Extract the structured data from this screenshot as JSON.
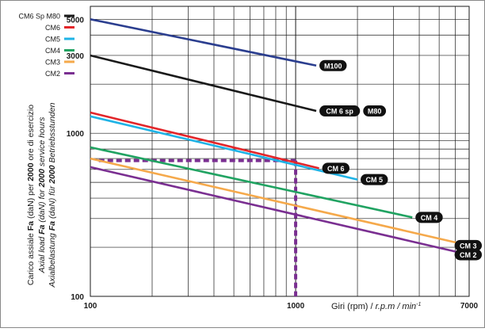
{
  "chart_data": {
    "type": "line",
    "x_scale": "log",
    "y_scale": "log",
    "xlim": [
      100,
      7000
    ],
    "ylim": [
      100,
      6000
    ],
    "grid": true,
    "legend_position": "top-left",
    "xlabel": {
      "prefix": "Giri (rpm) / ",
      "italic": "r.p.m / min",
      "sup": "-1"
    },
    "ylabel_lines": [
      [
        {
          "text": "Carico assiale ",
          "style": "normal"
        },
        {
          "text": "Fa",
          "style": "bold"
        },
        {
          "text": " (daN) per ",
          "style": "normal"
        },
        {
          "text": "2000",
          "style": "bold"
        },
        {
          "text": " ore di esercizio",
          "style": "normal"
        }
      ],
      [
        {
          "text": "Axial load ",
          "style": "italic"
        },
        {
          "text": "Fa",
          "style": "bold-italic"
        },
        {
          "text": " (daN) for ",
          "style": "italic"
        },
        {
          "text": "2000",
          "style": "bold-italic"
        },
        {
          "text": " service hours",
          "style": "italic"
        }
      ],
      [
        {
          "text": "Axialbelastung ",
          "style": "italic"
        },
        {
          "text": "Fa",
          "style": "bold-italic"
        },
        {
          "text": " (daN) für ",
          "style": "italic"
        },
        {
          "text": "2000",
          "style": "bold-italic"
        },
        {
          "text": " Betriebsstunden",
          "style": "italic"
        }
      ]
    ],
    "x_tick_labels": [
      {
        "value": 100,
        "label": "100"
      },
      {
        "value": 1000,
        "label": "1000"
      },
      {
        "value": 7000,
        "label": "7000"
      }
    ],
    "y_tick_labels": [
      {
        "value": 100,
        "label": "100"
      },
      {
        "value": 1000,
        "label": "1000"
      },
      {
        "value": 3000,
        "label": "3000"
      },
      {
        "value": 5000,
        "label": "5000"
      }
    ],
    "legend": [
      {
        "label": "CM6 Sp  M80",
        "color": "#1a1a1a"
      },
      {
        "label": "CM6",
        "color": "#e3262a"
      },
      {
        "label": "CM5",
        "color": "#1fb3e6"
      },
      {
        "label": "CM4",
        "color": "#21a362"
      },
      {
        "label": "CM3",
        "color": "#f5a94b"
      },
      {
        "label": "CM2",
        "color": "#7a2f91"
      }
    ],
    "series": [
      {
        "name": "M100",
        "color": "#2b3e8f",
        "x": [
          100,
          1260
        ],
        "y": [
          5000,
          2600
        ],
        "tags": [
          "M100"
        ]
      },
      {
        "name": "CM 6 sp / M80",
        "color": "#1a1a1a",
        "x": [
          100,
          1260
        ],
        "y": [
          3000,
          1370
        ],
        "tags": [
          "CM 6 sp",
          "M80"
        ]
      },
      {
        "name": "CM 6",
        "color": "#e3262a",
        "x": [
          100,
          1300
        ],
        "y": [
          1340,
          610
        ],
        "tags": [
          "CM 6"
        ]
      },
      {
        "name": "CM 5",
        "color": "#1fb3e6",
        "x": [
          100,
          2000
        ],
        "y": [
          1270,
          520
        ],
        "tags": [
          "CM 5"
        ]
      },
      {
        "name": "CM 4",
        "color": "#21a362",
        "x": [
          100,
          3700
        ],
        "y": [
          820,
          305
        ],
        "tags": [
          "CM 4"
        ]
      },
      {
        "name": "CM 3",
        "color": "#f5a94b",
        "x": [
          100,
          7000
        ],
        "y": [
          700,
          205
        ],
        "tags": [
          "CM 3"
        ]
      },
      {
        "name": "CM 2",
        "color": "#7a2f91",
        "x": [
          100,
          7000
        ],
        "y": [
          620,
          180
        ],
        "tags": [
          "CM 2"
        ]
      }
    ],
    "reference_lines": {
      "color": "#7a2f91",
      "x_value": 1000,
      "y_value": 680,
      "x_start": 110
    }
  }
}
